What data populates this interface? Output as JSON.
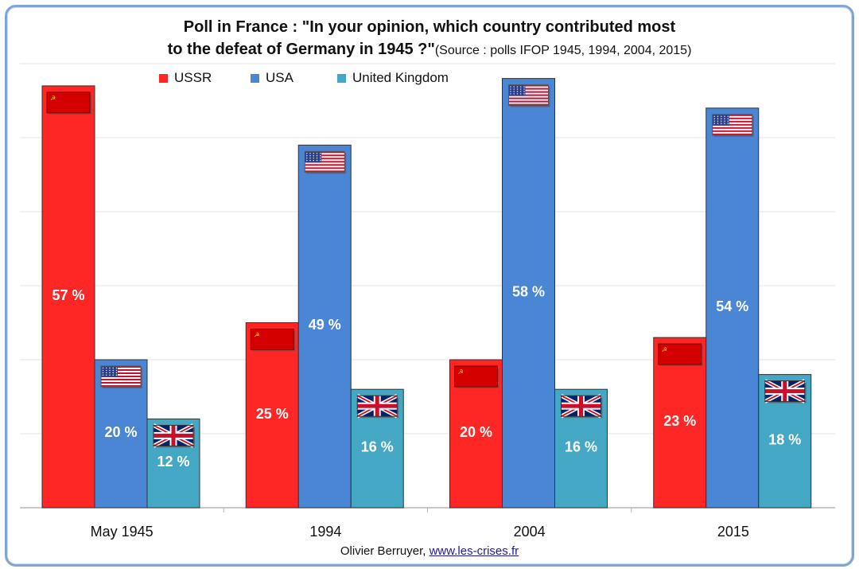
{
  "title": {
    "line1": "Poll in France : \"In your opinion, which country contributed most",
    "line2_bold": "to the defeat of Germany in 1945 ?\"",
    "line2_source": "(Source : polls IFOP 1945, 1994, 2004, 2015)"
  },
  "footer": {
    "author": "Olivier Berruyer, ",
    "link": "www.les-crises.fr"
  },
  "colors": {
    "USSR": "#ff2626",
    "USA": "#4a86d4",
    "United Kingdom": "#44a8c4",
    "grid": "#e3e3e3"
  },
  "chart_data": {
    "type": "bar",
    "title": "Poll in France : \"In your opinion, which country contributed most to the defeat of Germany in 1945 ?\"",
    "subtitle": "(Source : polls IFOP 1945, 1994, 2004, 2015)",
    "categories": [
      "May 1945",
      "1994",
      "2004",
      "2015"
    ],
    "series": [
      {
        "name": "USSR",
        "values": [
          57,
          25,
          20,
          23
        ],
        "labels": [
          "57 %",
          "25 %",
          "20 %",
          "23 %"
        ],
        "icon": "ussr-flag-icon"
      },
      {
        "name": "USA",
        "values": [
          20,
          49,
          58,
          54
        ],
        "labels": [
          "20 %",
          "49 %",
          "58 %",
          "54 %"
        ],
        "icon": "us-flag-icon"
      },
      {
        "name": "United Kingdom",
        "values": [
          12,
          16,
          16,
          18
        ],
        "labels": [
          "12 %",
          "16 %",
          "16 %",
          "18 %"
        ],
        "icon": "uk-flag-icon"
      }
    ],
    "ylim": [
      0,
      60
    ],
    "grid": true,
    "legend": "top"
  }
}
